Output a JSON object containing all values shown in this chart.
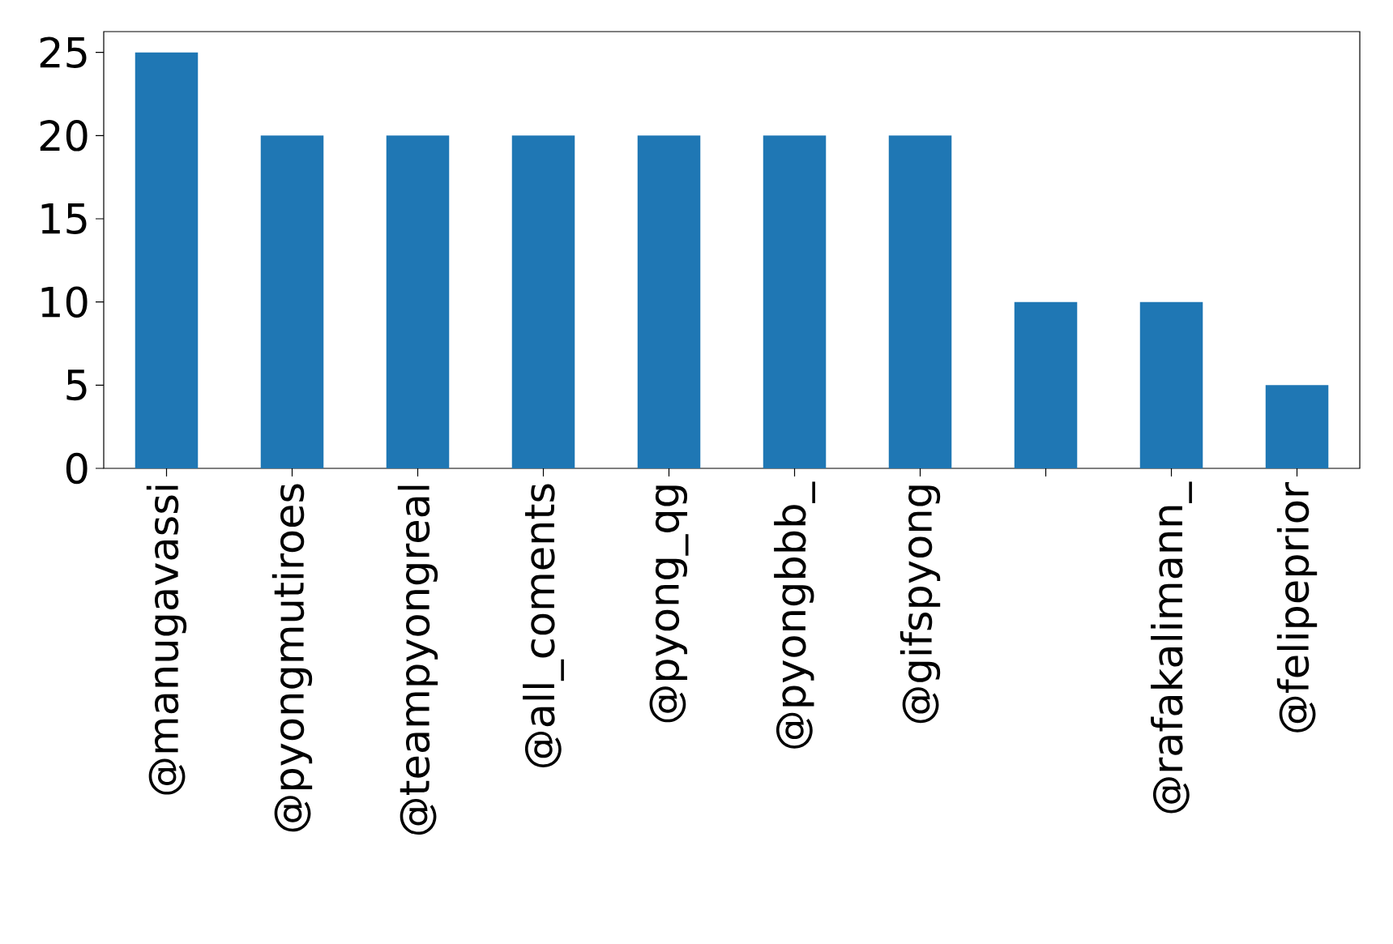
{
  "chart_data": {
    "type": "bar",
    "categories": [
      "@manugavassi",
      "@pyongmutiroes",
      "@teampyongreal",
      "@all_coments",
      "@pyong_qg",
      "@pyongbbb_",
      "@gifspyong",
      null,
      "@rafakalimann_",
      "@felipeprior"
    ],
    "values": [
      25,
      20,
      20,
      20,
      20,
      20,
      20,
      10,
      10,
      5
    ],
    "color": "#1f77b4",
    "ylim": [
      0,
      26.25
    ],
    "yticks": [
      0,
      5,
      10,
      15,
      20,
      25
    ],
    "grid": false
  }
}
